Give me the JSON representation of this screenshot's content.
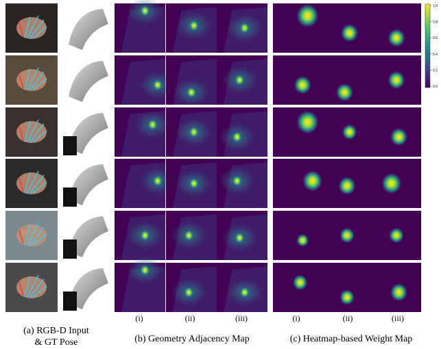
{
  "captions": {
    "a_line1": "(a) RGB-D Input",
    "a_line2": "& GT Pose",
    "b": "(b) Geometry Adjacency Map",
    "c": "(c) Heatmap-based Weight Map"
  },
  "sub_labels_b": [
    "(i)",
    "(ii)",
    "(iii)"
  ],
  "sub_labels_c": [
    "(i)",
    "(ii)",
    "(iii)"
  ],
  "colorbar_ticks": [
    "1.0",
    "0.8",
    "0.6",
    "0.4",
    "0.2",
    "0.0"
  ]
}
